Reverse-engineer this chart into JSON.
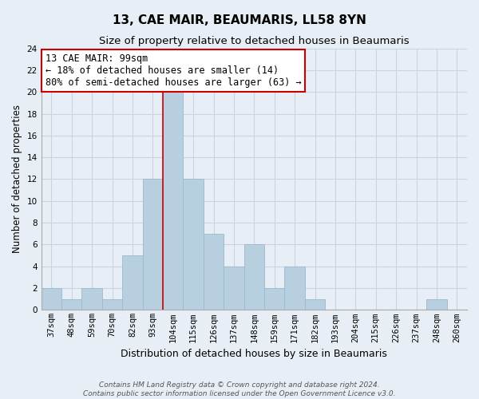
{
  "title": "13, CAE MAIR, BEAUMARIS, LL58 8YN",
  "subtitle": "Size of property relative to detached houses in Beaumaris",
  "xlabel": "Distribution of detached houses by size in Beaumaris",
  "ylabel": "Number of detached properties",
  "categories": [
    "37sqm",
    "48sqm",
    "59sqm",
    "70sqm",
    "82sqm",
    "93sqm",
    "104sqm",
    "115sqm",
    "126sqm",
    "137sqm",
    "148sqm",
    "159sqm",
    "171sqm",
    "182sqm",
    "193sqm",
    "204sqm",
    "215sqm",
    "226sqm",
    "237sqm",
    "248sqm",
    "260sqm"
  ],
  "values": [
    2,
    1,
    2,
    1,
    5,
    12,
    20,
    12,
    7,
    4,
    6,
    2,
    4,
    1,
    0,
    0,
    0,
    0,
    0,
    1,
    0
  ],
  "bar_color": "#b8cfe0",
  "bar_edge_color": "#9ab8d0",
  "grid_color": "#c8d4e0",
  "background_color": "#e8eef5",
  "ylim": [
    0,
    24
  ],
  "yticks": [
    0,
    2,
    4,
    6,
    8,
    10,
    12,
    14,
    16,
    18,
    20,
    22,
    24
  ],
  "property_line_x": 5.5,
  "property_line_color": "#cc0000",
  "annotation_title": "13 CAE MAIR: 99sqm",
  "annotation_line1": "← 18% of detached houses are smaller (14)",
  "annotation_line2": "80% of semi-detached houses are larger (63) →",
  "annotation_box_color": "#ffffff",
  "annotation_box_edge": "#cc0000",
  "footer1": "Contains HM Land Registry data © Crown copyright and database right 2024.",
  "footer2": "Contains public sector information licensed under the Open Government Licence v3.0.",
  "title_fontsize": 11,
  "subtitle_fontsize": 9.5,
  "xlabel_fontsize": 9,
  "ylabel_fontsize": 8.5,
  "tick_fontsize": 7.5,
  "annotation_fontsize": 8.5,
  "footer_fontsize": 6.5
}
